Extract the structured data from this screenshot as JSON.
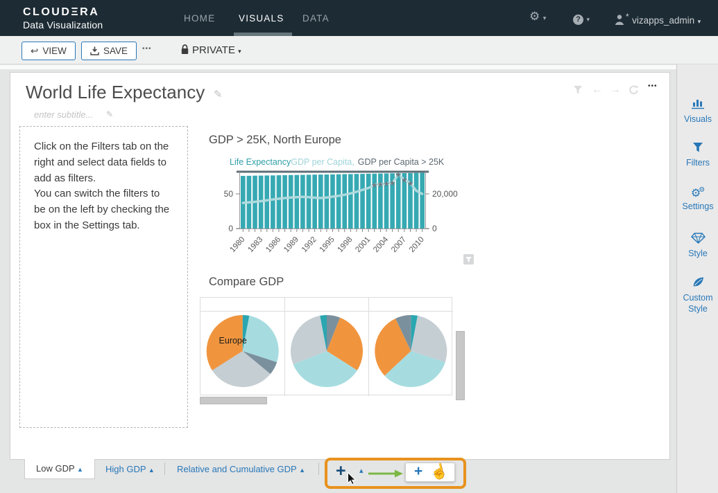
{
  "navbar": {
    "logo_line1": "CLOUDΞRA",
    "logo_line2": "Data Visualization",
    "menu": [
      {
        "label": "HOME"
      },
      {
        "label": "VISUALS"
      },
      {
        "label": "DATA"
      }
    ],
    "help_glyph": "?",
    "user_asterisk": "*",
    "username": "vizapps_admin"
  },
  "icons": {
    "caret_down": "▾",
    "caret_up": "▲",
    "caret_up_small": "▴",
    "ellipsis": "•••",
    "pencil": "✎",
    "back_arrow": "↩",
    "left_arrow": "←",
    "right_arrow": "→",
    "gear": "⚙",
    "plus": "+",
    "hand": "☝"
  },
  "toolbar": {
    "view_label": "VIEW",
    "save_label": "SAVE",
    "privacy_label": "PRIVATE"
  },
  "canvas": {
    "title": "World Life Expectancy",
    "subtitle_placeholder": "enter subtitle...",
    "note_line1": "Click on the Filters tab on the right and select data fields to add as filters.",
    "note_line2": "You can switch the filters to be on the left by checking the box in the Settings tab."
  },
  "sidebar": {
    "items": [
      {
        "label": "Visuals"
      },
      {
        "label": "Filters"
      },
      {
        "label": "Settings"
      },
      {
        "label": "Style"
      },
      {
        "label": "Custom Style"
      }
    ]
  },
  "tabs": {
    "items": [
      {
        "label": "Low GDP"
      },
      {
        "label": "High GDP"
      },
      {
        "label": "Relative and Cumulative GDP"
      }
    ]
  },
  "chart_data": [
    {
      "type": "bar",
      "title": "GDP > 25K, North Europe",
      "legend": [
        {
          "label": "Life Expectancy",
          "color": "#2f9fa7"
        },
        {
          "label": "GDP per Capita,",
          "color": "#9ed4d8"
        },
        {
          "label": "GDP per Capita > 25K",
          "color": "#5c6870"
        }
      ],
      "x_start": 1980,
      "x_end": 2010,
      "x_tick_labels": [
        "1980",
        "1983",
        "1986",
        "1989",
        "1992",
        "1995",
        "1998",
        "2001",
        "2004",
        "2007",
        "2010"
      ],
      "left_axis": {
        "label_ticks": [
          "0",
          "50"
        ],
        "tick_values": [
          0,
          50
        ],
        "max": 82
      },
      "right_axis": {
        "label_ticks": [
          "0",
          "20,000"
        ],
        "tick_values": [
          0,
          20000
        ],
        "max": 32800
      },
      "marker": "★",
      "series": [
        {
          "name": "Life Expectancy",
          "type": "bar",
          "axis": "left",
          "color": "#36a9b3",
          "values": [
            76.0,
            76.1,
            76.3,
            76.4,
            76.6,
            76.7,
            76.9,
            77.0,
            77.2,
            77.3,
            77.5,
            77.6,
            77.8,
            77.9,
            78.0,
            78.2,
            78.3,
            78.5,
            78.6,
            78.8,
            78.9,
            79.1,
            79.2,
            79.4,
            79.5,
            79.7,
            79.8,
            80.0,
            80.1,
            80.3,
            80.4
          ]
        },
        {
          "name": "GDP per Capita",
          "type": "line",
          "axis": "right",
          "color": "#b3dbde",
          "values": [
            14800,
            15100,
            15400,
            15800,
            16300,
            16800,
            17200,
            17600,
            17900,
            18100,
            18300,
            18100,
            17800,
            17600,
            17900,
            18400,
            18900,
            19500,
            20300,
            21200,
            22300,
            23400,
            25200,
            25600,
            25900,
            26300,
            31200,
            28200,
            26200,
            21800,
            20000
          ]
        },
        {
          "name": "GDP per Capita > 25K",
          "type": "star",
          "axis": "right",
          "color": "#6b7880",
          "points": [
            [
              2002,
              25200
            ],
            [
              2003,
              25600
            ],
            [
              2004,
              25900
            ],
            [
              2005,
              26300
            ],
            [
              2006,
              31200
            ],
            [
              2007,
              28200
            ],
            [
              2008,
              26200
            ]
          ]
        }
      ]
    },
    {
      "type": "pie",
      "title": "Compare GDP",
      "palette": {
        "teal": "#2aa6b0",
        "cyan": "#a6dce0",
        "slate": "#7b909d",
        "gray": "#c5ced3",
        "orange": "#f0953e"
      },
      "pies": [
        {
          "label": "Europe",
          "slices": [
            [
              "teal",
              3
            ],
            [
              "cyan",
              27
            ],
            [
              "slate",
              6
            ],
            [
              "gray",
              30
            ],
            [
              "orange",
              34
            ]
          ]
        },
        {
          "label": "",
          "slices": [
            [
              "slate",
              6
            ],
            [
              "orange",
              28
            ],
            [
              "cyan",
              35
            ],
            [
              "gray",
              28
            ],
            [
              "teal",
              3
            ]
          ]
        },
        {
          "label": "",
          "slices": [
            [
              "teal",
              3
            ],
            [
              "gray",
              27
            ],
            [
              "cyan",
              33
            ],
            [
              "orange",
              30
            ],
            [
              "slate",
              7
            ]
          ]
        }
      ]
    }
  ]
}
